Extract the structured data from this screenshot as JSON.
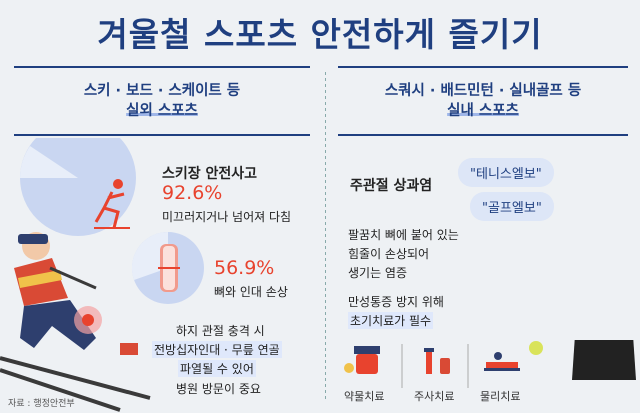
{
  "title": "겨울철 스포츠 안전하게 즐기기",
  "outdoor": {
    "header_line1": "스키 · 보드 · 스케이트 등",
    "header_line2": "실외 스포츠",
    "ski_accident_title": "스키장 안전사고",
    "stat1_pct": "92.6%",
    "stat1_label": "미끄러지거나 넘어져 다침",
    "stat1_value": 92.6,
    "stat2_pct": "56.9%",
    "stat2_label": "뼈와 인대 손상",
    "stat2_value": 56.9,
    "knee_line1": "하지 관절 충격 시",
    "knee_line2": "전방십자인대 · 무릎 연골",
    "knee_line3": "파열될 수 있어",
    "knee_line4": "병원 방문이 중요"
  },
  "indoor": {
    "header_line1": "스쿼시 · 배드민턴 · 실내골프 등",
    "header_line2": "실내 스포츠",
    "epicondylitis": "주관절 상과염",
    "bubble1": "\"테니스엘보\"",
    "bubble2": "\"골프엘보\"",
    "desc_line1": "팔꿈치 뼈에 붙어 있는",
    "desc_line2": "힘줄이 손상되어",
    "desc_line3": "생기는 염증",
    "prevent_line1": "만성통증 방지 위해",
    "prevent_line2": "초기치료가 필수",
    "treatments": [
      "약물치료",
      "주사치료",
      "물리치료"
    ]
  },
  "source": "자료 : 행정안전부",
  "colors": {
    "accent": "#e8432e",
    "navy": "#1f3f80",
    "highlight": "#dfe8fb"
  }
}
